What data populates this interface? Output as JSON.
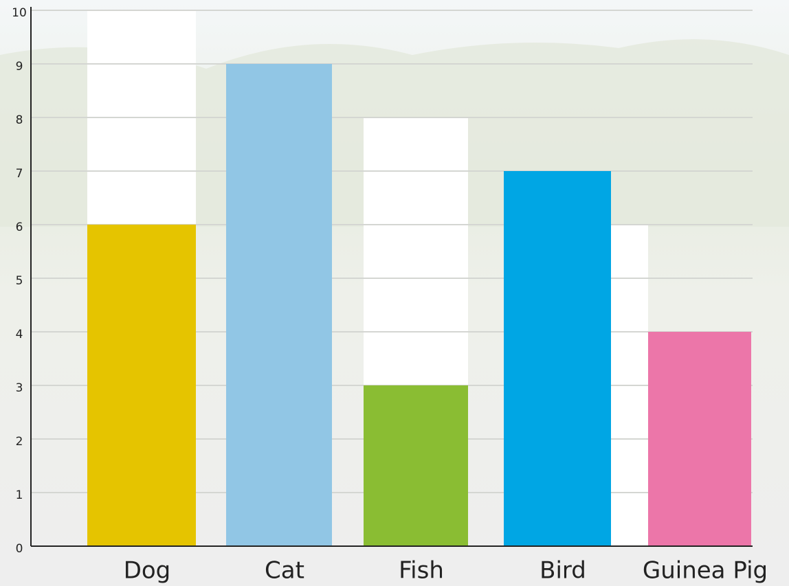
{
  "chart_data": {
    "type": "bar",
    "categories": [
      "Dog",
      "Cat",
      "Fish",
      "Bird",
      "Guinea Pig"
    ],
    "values": [
      6,
      9,
      3,
      7,
      4
    ],
    "colors": [
      "#e5c400",
      "#91c6e5",
      "#8abd33",
      "#00a6e4",
      "#ec76a9"
    ],
    "ylim": [
      0,
      10
    ],
    "yticks": [
      0,
      1,
      2,
      3,
      4,
      5,
      6,
      7,
      8,
      9,
      10
    ],
    "grid": true
  }
}
